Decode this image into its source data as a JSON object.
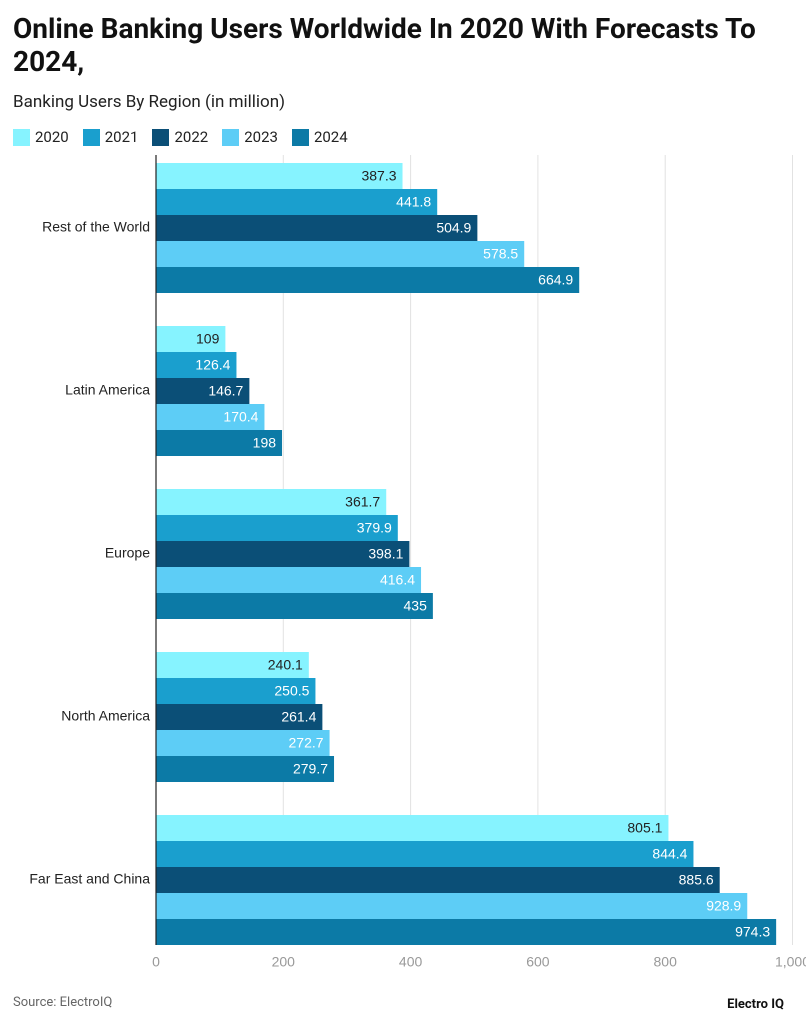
{
  "chart_data": {
    "type": "bar",
    "orientation": "horizontal",
    "title": "Online Banking Users Worldwide In 2020 With Forecasts To 2024,",
    "subtitle": "Banking Users By Region (in million)",
    "categories": [
      "Rest of the World",
      "Latin America",
      "Europe",
      "North America",
      "Far East and China"
    ],
    "series": [
      {
        "name": "2020",
        "color": "#86f3ff",
        "values": [
          387.3,
          109,
          361.7,
          240.1,
          805.1
        ]
      },
      {
        "name": "2021",
        "color": "#1a9fce",
        "values": [
          441.8,
          126.4,
          379.9,
          250.5,
          844.4
        ]
      },
      {
        "name": "2022",
        "color": "#0b4f77",
        "values": [
          504.9,
          146.7,
          398.1,
          261.4,
          885.6
        ]
      },
      {
        "name": "2023",
        "color": "#5dcdf6",
        "values": [
          578.5,
          170.4,
          416.4,
          272.7,
          928.9
        ]
      },
      {
        "name": "2024",
        "color": "#0c7aa6",
        "values": [
          664.9,
          198,
          435,
          279.7,
          974.3
        ]
      }
    ],
    "xlim": [
      0,
      1000
    ],
    "xticks": [
      0,
      200,
      400,
      600,
      800,
      {
        "value": 1000,
        "label": "1,000"
      }
    ],
    "grid": true,
    "source": "Source: ElectroIQ",
    "brand": "Electro IQ"
  }
}
